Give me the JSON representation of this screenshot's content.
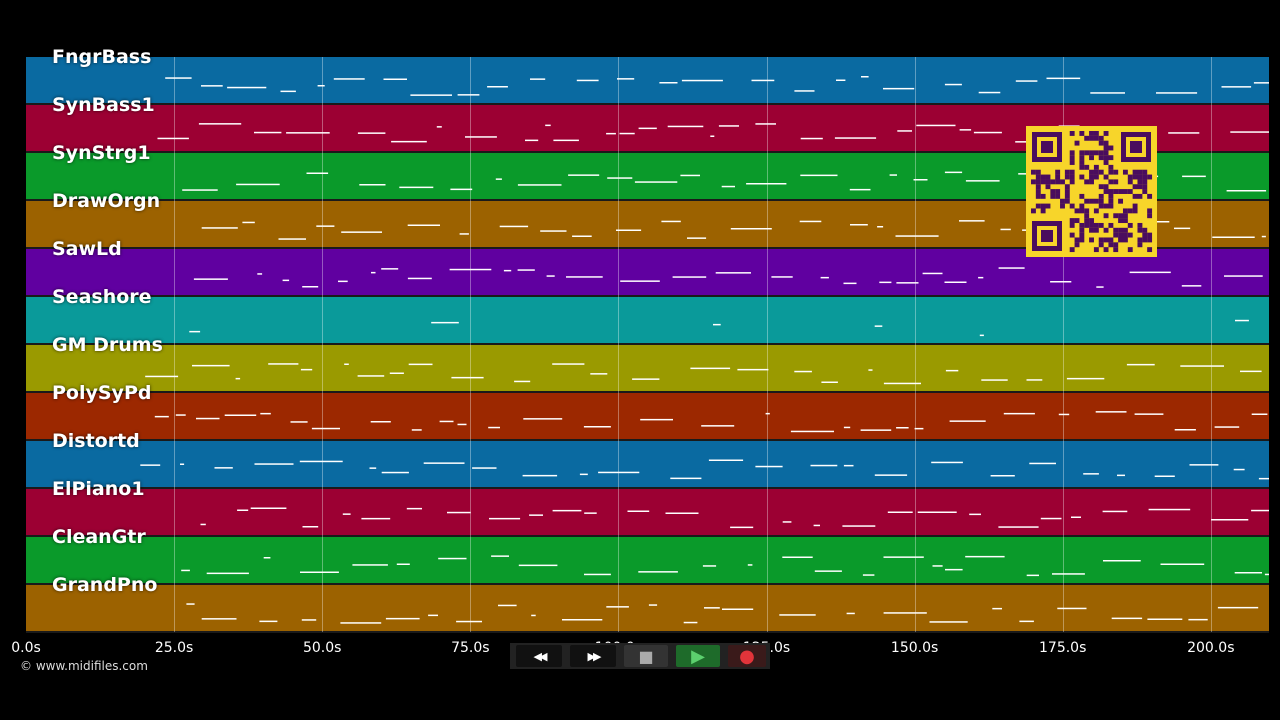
{
  "tracks": [
    {
      "name": "FngrBass",
      "color": "#0a6aa1"
    },
    {
      "name": "SynBass1",
      "color": "#9c0033"
    },
    {
      "name": "SynStrg1",
      "color": "#0a9a2a"
    },
    {
      "name": "DrawOrgn",
      "color": "#9c6200"
    },
    {
      "name": "SawLd",
      "color": "#6000a0"
    },
    {
      "name": "Seashore",
      "color": "#0a9a9a"
    },
    {
      "name": "GM Drums",
      "color": "#9a9a00"
    },
    {
      "name": "PolySyPd",
      "color": "#9c2800"
    },
    {
      "name": "Distortd",
      "color": "#0a6aa1"
    },
    {
      "name": "ElPiano1",
      "color": "#9c0033"
    },
    {
      "name": "CleanGtr",
      "color": "#0a9a2a"
    },
    {
      "name": "GrandPno",
      "color": "#9c6200"
    }
  ],
  "timeline": {
    "ticks": [
      "0.0s",
      "25.0s",
      "50.0s",
      "75.0s",
      "100.0s",
      "125.0s",
      "150.0s",
      "175.0s",
      "200.0s"
    ]
  },
  "copyright": "© www.midifiles.com",
  "controls": {
    "rewind": "◀◀",
    "forward": "▶▶",
    "stop": "■",
    "play": "▶",
    "record": "●"
  }
}
